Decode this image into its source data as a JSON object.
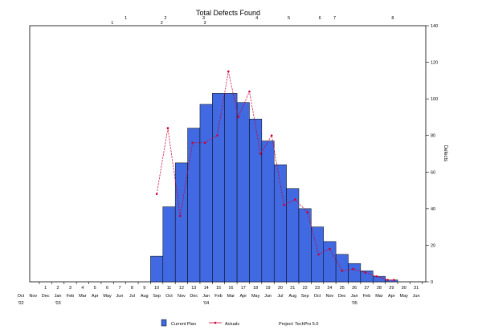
{
  "chart_data": {
    "type": "bar",
    "title": "Total Defects Found",
    "ylabel": "Defects",
    "ylim": [
      0,
      140
    ],
    "yticks": [
      0,
      20,
      40,
      60,
      80,
      100,
      120,
      140
    ],
    "grid": false,
    "x_numbers": [
      "1",
      "2",
      "3",
      "4",
      "5",
      "6",
      "7",
      "8",
      "9",
      "10",
      "11",
      "12",
      "13",
      "14",
      "15",
      "16",
      "17",
      "18",
      "19",
      "20",
      "21",
      "22",
      "23",
      "24",
      "25",
      "26",
      "27",
      "28",
      "29",
      "30",
      "31"
    ],
    "x_months": [
      "Oct",
      "Nov",
      "Dec",
      "Jan",
      "Feb",
      "Mar",
      "Apr",
      "May",
      "Jun",
      "Jul",
      "Aug",
      "Sep",
      "Oct",
      "Nov",
      "Dec",
      "Jan",
      "Feb",
      "Mar",
      "Apr",
      "May",
      "Jun",
      "Jul",
      "Aug",
      "Sep",
      "Oct",
      "Nov",
      "Dec",
      "Jan",
      "Feb",
      "Mar",
      "Apr",
      "May",
      "Jun"
    ],
    "x_years": [
      {
        "label": "'02",
        "at": "Oct"
      },
      {
        "label": "'03",
        "at": "Jan"
      },
      {
        "label": "'04",
        "at": "Jan"
      },
      {
        "label": "'05",
        "at": "Jan"
      }
    ],
    "milestones_top": [
      {
        "label": "1",
        "at": 7.5
      },
      {
        "label": "2",
        "at": 10.7
      },
      {
        "label": "3",
        "at": 13.8
      },
      {
        "label": "4",
        "at": 18.1
      },
      {
        "label": "5",
        "at": 20.7
      },
      {
        "label": "6",
        "at": 23.2
      },
      {
        "label": "7",
        "at": 24.4
      },
      {
        "label": "8",
        "at": 29.1
      }
    ],
    "milestones_bottom": [
      {
        "label": "1",
        "at": 6.4
      },
      {
        "label": "2",
        "at": 10.4
      },
      {
        "label": "3",
        "at": 13.9
      }
    ],
    "series": [
      {
        "name": "Current Plan",
        "kind": "bar",
        "color": "#4169E1",
        "x": [
          10,
          11,
          12,
          13,
          14,
          15,
          16,
          17,
          18,
          19,
          20,
          21,
          22,
          23,
          24,
          25,
          26,
          27,
          28,
          29
        ],
        "values": [
          14,
          41,
          65,
          84,
          97,
          103,
          103,
          98,
          89,
          77,
          64,
          51,
          40,
          30,
          22,
          15,
          10,
          6,
          3,
          1
        ]
      },
      {
        "name": "Actuals",
        "kind": "line",
        "color": "#CC0033",
        "x": [
          10,
          10.9,
          11.9,
          12.9,
          13.9,
          14.9,
          15.8,
          16.6,
          17.5,
          18.4,
          19.3,
          20.3,
          21.2,
          22.2,
          23.1,
          24.0,
          25.0,
          25.9,
          26.9,
          27.8,
          28.7,
          29.2
        ],
        "values": [
          48,
          84,
          36,
          76,
          76,
          80,
          115,
          90,
          104,
          70,
          80,
          42,
          45,
          38,
          15,
          18,
          6,
          7,
          5,
          3,
          1,
          1
        ]
      }
    ],
    "legend": {
      "position": "bottom",
      "plan_label": "Current Plan",
      "actuals_label": "Actuals",
      "project_label": "Project: TechPro 5.0"
    }
  }
}
